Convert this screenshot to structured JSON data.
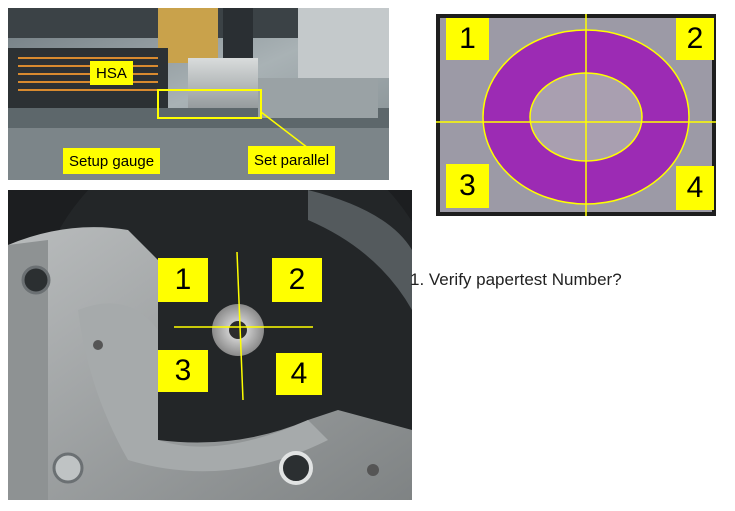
{
  "top_left_photo": {
    "labels": {
      "hsa": "HSA",
      "setup_gauge": "Setup gauge",
      "set_parallel": "Set parallel"
    }
  },
  "paper_test": {
    "quadrants": [
      "1",
      "2",
      "3",
      "4"
    ]
  },
  "disk_photo": {
    "quadrants": [
      "1",
      "2",
      "3",
      "4"
    ]
  },
  "instruction": "1. Verify papertest  Number?"
}
